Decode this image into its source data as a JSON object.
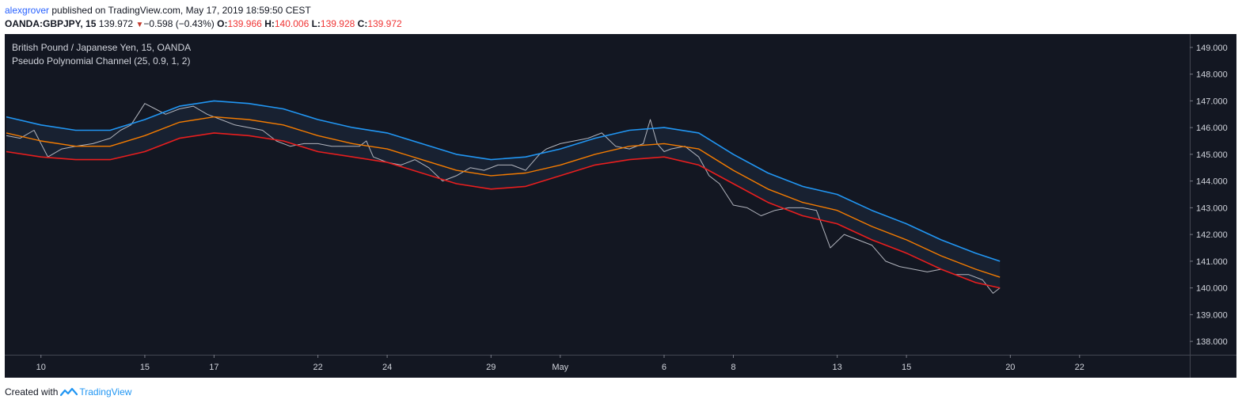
{
  "header": {
    "user": "alexgrover",
    "published": "published on TradingView.com, May 17, 2019 18:59:50 CEST",
    "symbol": "OANDA:GBPJPY, 15",
    "last": "139.972",
    "change": "−0.598 (−0.43%)",
    "o_label": "O:",
    "o_value": "139.966",
    "h_label": "H:",
    "h_value": "140.006",
    "l_label": "L:",
    "l_value": "139.928",
    "c_label": "C:",
    "c_value": "139.972"
  },
  "footer": {
    "created_with": "Created with",
    "brand": "TradingView"
  },
  "colors": {
    "background": "#131722",
    "price": "#b2b5be",
    "upper": "#2196f3",
    "middle": "#f57c00",
    "lower": "#e91e1e",
    "fill": "#1a2233"
  },
  "chart_data": {
    "type": "line",
    "title": "British Pound / Japanese Yen, 15, OANDA",
    "indicator": "Pseudo Polynomial Channel (25, 0.9, 1, 2)",
    "ylim": [
      137.5,
      149.5
    ],
    "yticks": [
      "149.000",
      "148.000",
      "147.000",
      "146.000",
      "145.000",
      "144.000",
      "143.000",
      "142.000",
      "141.000",
      "140.000",
      "139.000",
      "138.000"
    ],
    "xlim": [
      0,
      34
    ],
    "xticks": [
      {
        "label": "10",
        "x": 1
      },
      {
        "label": "15",
        "x": 4
      },
      {
        "label": "17",
        "x": 6
      },
      {
        "label": "22",
        "x": 9
      },
      {
        "label": "24",
        "x": 11
      },
      {
        "label": "29",
        "x": 14
      },
      {
        "label": "May",
        "x": 16
      },
      {
        "label": "6",
        "x": 19
      },
      {
        "label": "8",
        "x": 21
      },
      {
        "label": "13",
        "x": 24
      },
      {
        "label": "15",
        "x": 26
      },
      {
        "label": "20",
        "x": 29
      },
      {
        "label": "22",
        "x": 31
      }
    ],
    "series": [
      {
        "name": "Price",
        "x": [
          0,
          0.4,
          0.8,
          1.2,
          1.6,
          2,
          2.5,
          3,
          3.3,
          3.6,
          3.8,
          4,
          4.3,
          4.6,
          5,
          5.4,
          5.8,
          6.2,
          6.6,
          7,
          7.4,
          7.8,
          8.2,
          8.6,
          9,
          9.4,
          9.8,
          10.2,
          10.4,
          10.6,
          11,
          11.4,
          11.8,
          12.2,
          12.6,
          13,
          13.4,
          13.8,
          14.2,
          14.6,
          15,
          15.4,
          15.6,
          16,
          16.4,
          16.8,
          17.2,
          17.6,
          18,
          18.4,
          18.6,
          18.8,
          19,
          19.2,
          19.6,
          20,
          20.3,
          20.6,
          21,
          21.4,
          21.8,
          22.2,
          22.6,
          23,
          23.4,
          23.8,
          24.2,
          24.6,
          25,
          25.4,
          25.8,
          26.2,
          26.6,
          27,
          27.4,
          27.8,
          28.2,
          28.5,
          28.7
        ],
        "values": [
          145.7,
          145.6,
          145.9,
          144.9,
          145.2,
          145.3,
          145.4,
          145.6,
          145.9,
          146.1,
          146.5,
          146.9,
          146.7,
          146.5,
          146.7,
          146.8,
          146.5,
          146.3,
          146.1,
          146.0,
          145.9,
          145.5,
          145.3,
          145.4,
          145.4,
          145.3,
          145.3,
          145.3,
          145.5,
          144.9,
          144.7,
          144.6,
          144.8,
          144.5,
          144.0,
          144.2,
          144.5,
          144.4,
          144.6,
          144.6,
          144.4,
          145.0,
          145.2,
          145.4,
          145.5,
          145.6,
          145.8,
          145.3,
          145.2,
          145.4,
          146.3,
          145.4,
          145.1,
          145.2,
          145.3,
          144.9,
          144.2,
          143.9,
          143.1,
          143.0,
          142.7,
          142.9,
          143.0,
          143.0,
          142.9,
          141.5,
          142.0,
          141.8,
          141.6,
          141.0,
          140.8,
          140.7,
          140.6,
          140.7,
          140.5,
          140.5,
          140.3,
          139.8,
          140.0
        ]
      },
      {
        "name": "Upper",
        "x": [
          0,
          1,
          2,
          3,
          4,
          5,
          6,
          7,
          8,
          9,
          10,
          11,
          12,
          13,
          14,
          15,
          16,
          17,
          18,
          19,
          20,
          21,
          22,
          23,
          24,
          25,
          26,
          27,
          28,
          28.7
        ],
        "values": [
          146.4,
          146.1,
          145.9,
          145.9,
          146.3,
          146.8,
          147.0,
          146.9,
          146.7,
          146.3,
          146.0,
          145.8,
          145.4,
          145.0,
          144.8,
          144.9,
          145.2,
          145.6,
          145.9,
          146.0,
          145.8,
          145.0,
          144.3,
          143.8,
          143.5,
          142.9,
          142.4,
          141.8,
          141.3,
          141.0
        ]
      },
      {
        "name": "Middle",
        "x": [
          0,
          1,
          2,
          3,
          4,
          5,
          6,
          7,
          8,
          9,
          10,
          11,
          12,
          13,
          14,
          15,
          16,
          17,
          18,
          19,
          20,
          21,
          22,
          23,
          24,
          25,
          26,
          27,
          28,
          28.7
        ],
        "values": [
          145.8,
          145.5,
          145.3,
          145.3,
          145.7,
          146.2,
          146.4,
          146.3,
          146.1,
          145.7,
          145.4,
          145.2,
          144.8,
          144.4,
          144.2,
          144.3,
          144.6,
          145.0,
          145.3,
          145.4,
          145.2,
          144.4,
          143.7,
          143.2,
          142.9,
          142.3,
          141.8,
          141.2,
          140.7,
          140.4
        ]
      },
      {
        "name": "Lower",
        "x": [
          0,
          1,
          2,
          3,
          4,
          5,
          6,
          7,
          8,
          9,
          10,
          11,
          12,
          13,
          14,
          15,
          16,
          17,
          18,
          19,
          20,
          21,
          22,
          23,
          24,
          25,
          26,
          27,
          28,
          28.7
        ],
        "values": [
          145.1,
          144.9,
          144.8,
          144.8,
          145.1,
          145.6,
          145.8,
          145.7,
          145.5,
          145.1,
          144.9,
          144.7,
          144.3,
          143.9,
          143.7,
          143.8,
          144.2,
          144.6,
          144.8,
          144.9,
          144.6,
          143.9,
          143.2,
          142.7,
          142.4,
          141.8,
          141.3,
          140.7,
          140.2,
          140.0
        ]
      }
    ]
  }
}
